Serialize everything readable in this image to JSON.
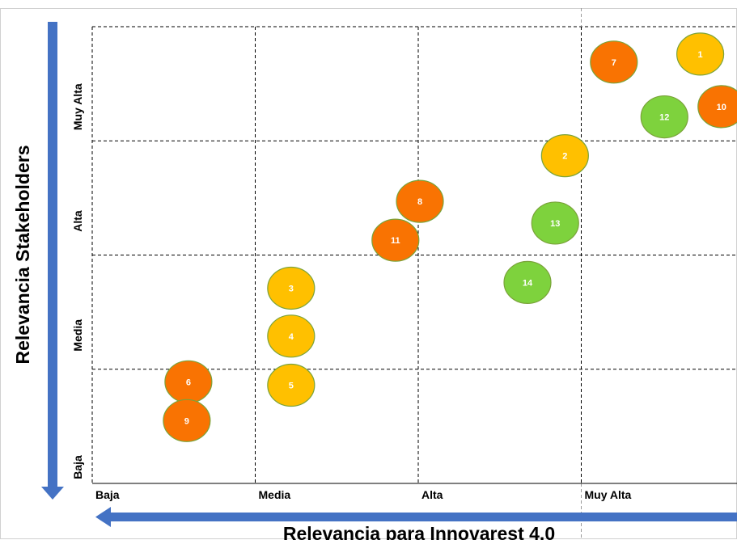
{
  "chart_data": {
    "type": "scatter",
    "xlabel": "Relevancia para Innovarest 4.0",
    "ylabel": "Relevancia Stakeholders",
    "x_ticks": [
      "Baja",
      "Media",
      "Alta",
      "Muy Alta"
    ],
    "y_ticks": [
      "Baja",
      "Media",
      "Alta",
      "Muy Alta"
    ],
    "xlim": [
      0,
      4
    ],
    "ylim": [
      0,
      4
    ],
    "grid": true,
    "colors": {
      "orange": "#F97302",
      "yellow": "#FFC000",
      "green": "#7ED23D",
      "border": "#7AA33A",
      "axis_arrow": "#4472C4"
    },
    "points": [
      {
        "label": "1",
        "x": 3.73,
        "y": 3.76,
        "color": "yellow"
      },
      {
        "label": "2",
        "x": 2.9,
        "y": 2.87,
        "color": "yellow"
      },
      {
        "label": "3",
        "x": 1.22,
        "y": 1.71,
        "color": "yellow"
      },
      {
        "label": "4",
        "x": 1.22,
        "y": 1.29,
        "color": "yellow"
      },
      {
        "label": "5",
        "x": 1.22,
        "y": 0.86,
        "color": "yellow"
      },
      {
        "label": "6",
        "x": 0.59,
        "y": 0.89,
        "color": "orange"
      },
      {
        "label": "7",
        "x": 3.2,
        "y": 3.69,
        "color": "orange"
      },
      {
        "label": "8",
        "x": 2.01,
        "y": 2.47,
        "color": "orange"
      },
      {
        "label": "9",
        "x": 0.58,
        "y": 0.55,
        "color": "orange"
      },
      {
        "label": "10",
        "x": 3.86,
        "y": 3.3,
        "color": "orange"
      },
      {
        "label": "11",
        "x": 1.86,
        "y": 2.13,
        "color": "orange"
      },
      {
        "label": "12",
        "x": 3.51,
        "y": 3.21,
        "color": "green"
      },
      {
        "label": "13",
        "x": 2.84,
        "y": 2.28,
        "color": "green"
      },
      {
        "label": "14",
        "x": 2.67,
        "y": 1.76,
        "color": "green"
      }
    ]
  }
}
